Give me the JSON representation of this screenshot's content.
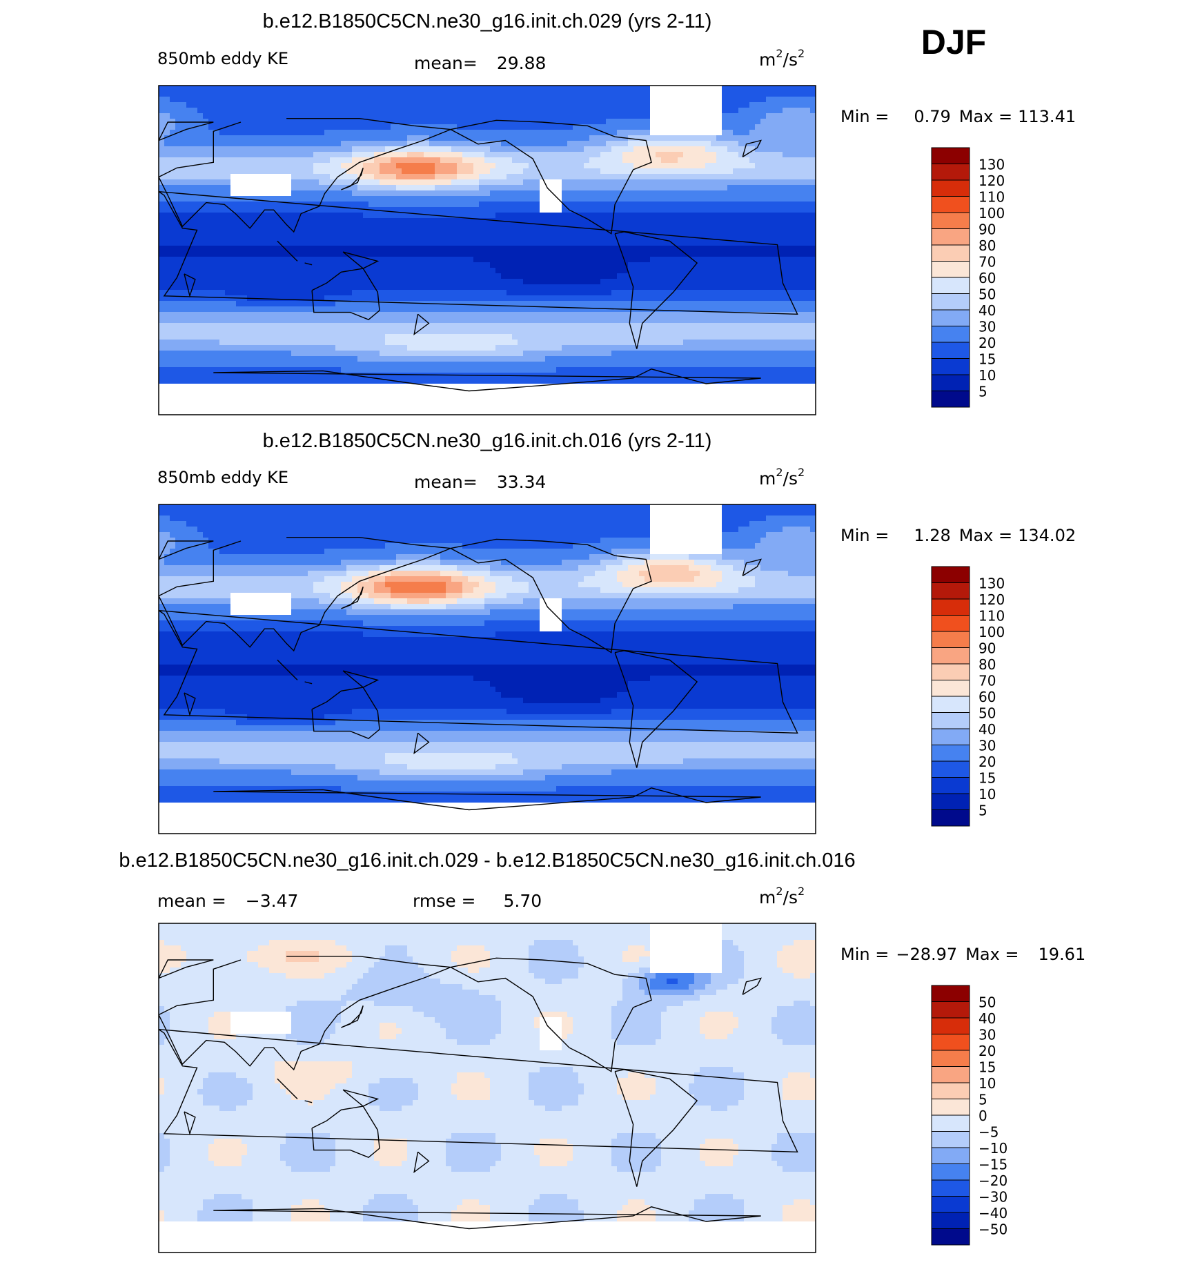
{
  "season": "DJF",
  "colors": {
    "blue_ramp": [
      "#000a8c",
      "#0022b4",
      "#0a3ad2",
      "#1e58e6",
      "#4682f0",
      "#82aaf5",
      "#b4cdfa",
      "#d7e6fc"
    ],
    "warm_ramp": [
      "#fbe6d7",
      "#fbcdb4",
      "#f9a582",
      "#f57d4b",
      "#f0501e",
      "#d72d0a",
      "#b4190a",
      "#8c0000"
    ],
    "land_white": "#ffffff",
    "coast": "#000000"
  },
  "chart_data": [
    {
      "type": "heatmap",
      "title": "b.e12.B1850C5CN.ne30_g16.init.ch.029 (yrs 2-11)",
      "left_label": "850mb eddy KE",
      "mean_label": "mean=",
      "mean": "29.88",
      "units_base": "m",
      "units_exp": "2",
      "units_mid": "/s",
      "units_exp2": "2",
      "min_label": "Min =",
      "min": "0.79",
      "max_label": "Max =",
      "max": "113.41",
      "colorbar_levels": [
        "130",
        "120",
        "110",
        "100",
        "90",
        "80",
        "70",
        "60",
        "50",
        "40",
        "30",
        "20",
        "15",
        "10",
        "5"
      ],
      "field": "sum"
    },
    {
      "type": "heatmap",
      "title": "b.e12.B1850C5CN.ne30_g16.init.ch.016 (yrs 2-11)",
      "left_label": "850mb eddy KE",
      "mean_label": "mean=",
      "mean": "33.34",
      "units_base": "m",
      "units_exp": "2",
      "units_mid": "/s",
      "units_exp2": "2",
      "min_label": "Min =",
      "min": "1.28",
      "max_label": "Max =",
      "max": "134.02",
      "colorbar_levels": [
        "130",
        "120",
        "110",
        "100",
        "90",
        "80",
        "70",
        "60",
        "50",
        "40",
        "30",
        "20",
        "15",
        "10",
        "5"
      ],
      "field": "sum"
    },
    {
      "type": "heatmap",
      "title": "b.e12.B1850C5CN.ne30_g16.init.ch.029 - b.e12.B1850C5CN.ne30_g16.init.ch.016",
      "left_label": "mean =",
      "mean": "−3.47",
      "rmse_label": "rmse =",
      "rmse": "5.70",
      "units_base": "m",
      "units_exp": "2",
      "units_mid": "/s",
      "units_exp2": "2",
      "min_label": "Min =",
      "min": "−28.97",
      "max_label": "Max =",
      "max": "19.61",
      "colorbar_levels": [
        "50",
        "40",
        "30",
        "20",
        "15",
        "10",
        "5",
        "0",
        "−5",
        "−10",
        "−15",
        "−20",
        "−30",
        "−40",
        "−50"
      ],
      "field": "diff"
    }
  ]
}
